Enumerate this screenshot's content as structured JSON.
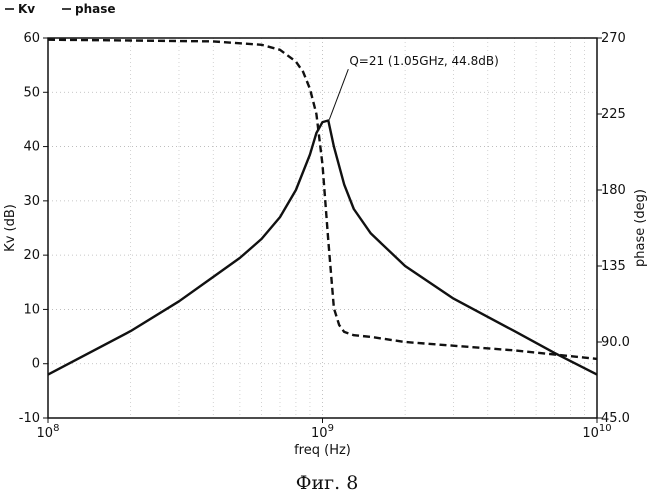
{
  "chart_data": {
    "type": "line",
    "x_scale": "log",
    "xlim": [
      100000000,
      10000000000
    ],
    "ylim_left": [
      -10,
      60
    ],
    "ylim_right": [
      45,
      270
    ],
    "xlabel": "freq (Hz)",
    "ylabel_left": "Kv (dB)",
    "ylabel_right": "phase (deg)",
    "x_ticks": [
      {
        "base": "10",
        "exp": "8",
        "value": 100000000
      },
      {
        "base": "10",
        "exp": "9",
        "value": 1000000000
      },
      {
        "base": "10",
        "exp": "10",
        "value": 10000000000
      }
    ],
    "y_ticks_left": [
      "-10",
      "0",
      "10",
      "20",
      "30",
      "40",
      "50",
      "60"
    ],
    "y_ticks_right": [
      "45.0",
      "90.0",
      "135",
      "180",
      "225",
      "270"
    ],
    "grid": true,
    "legend": {
      "placement": "top-left",
      "entries": [
        "Kv",
        "phase"
      ]
    },
    "series": [
      {
        "name": "Kv",
        "axis": "left",
        "style": "solid",
        "x": [
          100000000,
          200000000,
          300000000,
          400000000,
          500000000,
          600000000,
          700000000,
          800000000,
          900000000,
          950000000,
          1000000000,
          1050000000,
          1100000000,
          1200000000,
          1300000000,
          1500000000,
          2000000000,
          3000000000,
          5000000000,
          7000000000,
          10000000000
        ],
        "y": [
          -2,
          6,
          11.5,
          16,
          19.5,
          23,
          27,
          32,
          38.5,
          42.5,
          44.5,
          44.8,
          40,
          33,
          28.5,
          24,
          18,
          12,
          6,
          2,
          -2
        ]
      },
      {
        "name": "phase",
        "axis": "right",
        "style": "dashed",
        "x": [
          100000000,
          200000000,
          400000000,
          600000000,
          700000000,
          800000000,
          850000000,
          900000000,
          950000000,
          1000000000,
          1050000000,
          1100000000,
          1150000000,
          1200000000,
          1300000000,
          1500000000,
          2000000000,
          5000000000,
          10000000000
        ],
        "y": [
          269,
          268.5,
          268,
          266,
          263,
          256,
          250,
          240,
          225,
          195,
          150,
          110,
          100,
          96,
          94,
          93,
          90,
          85,
          80
        ]
      }
    ],
    "annotations": [
      {
        "text": "Q=21 (1.05GHz, 44.8dB)",
        "x": 1050000000,
        "y": 44.8
      }
    ],
    "caption": "Фиг. 8"
  }
}
